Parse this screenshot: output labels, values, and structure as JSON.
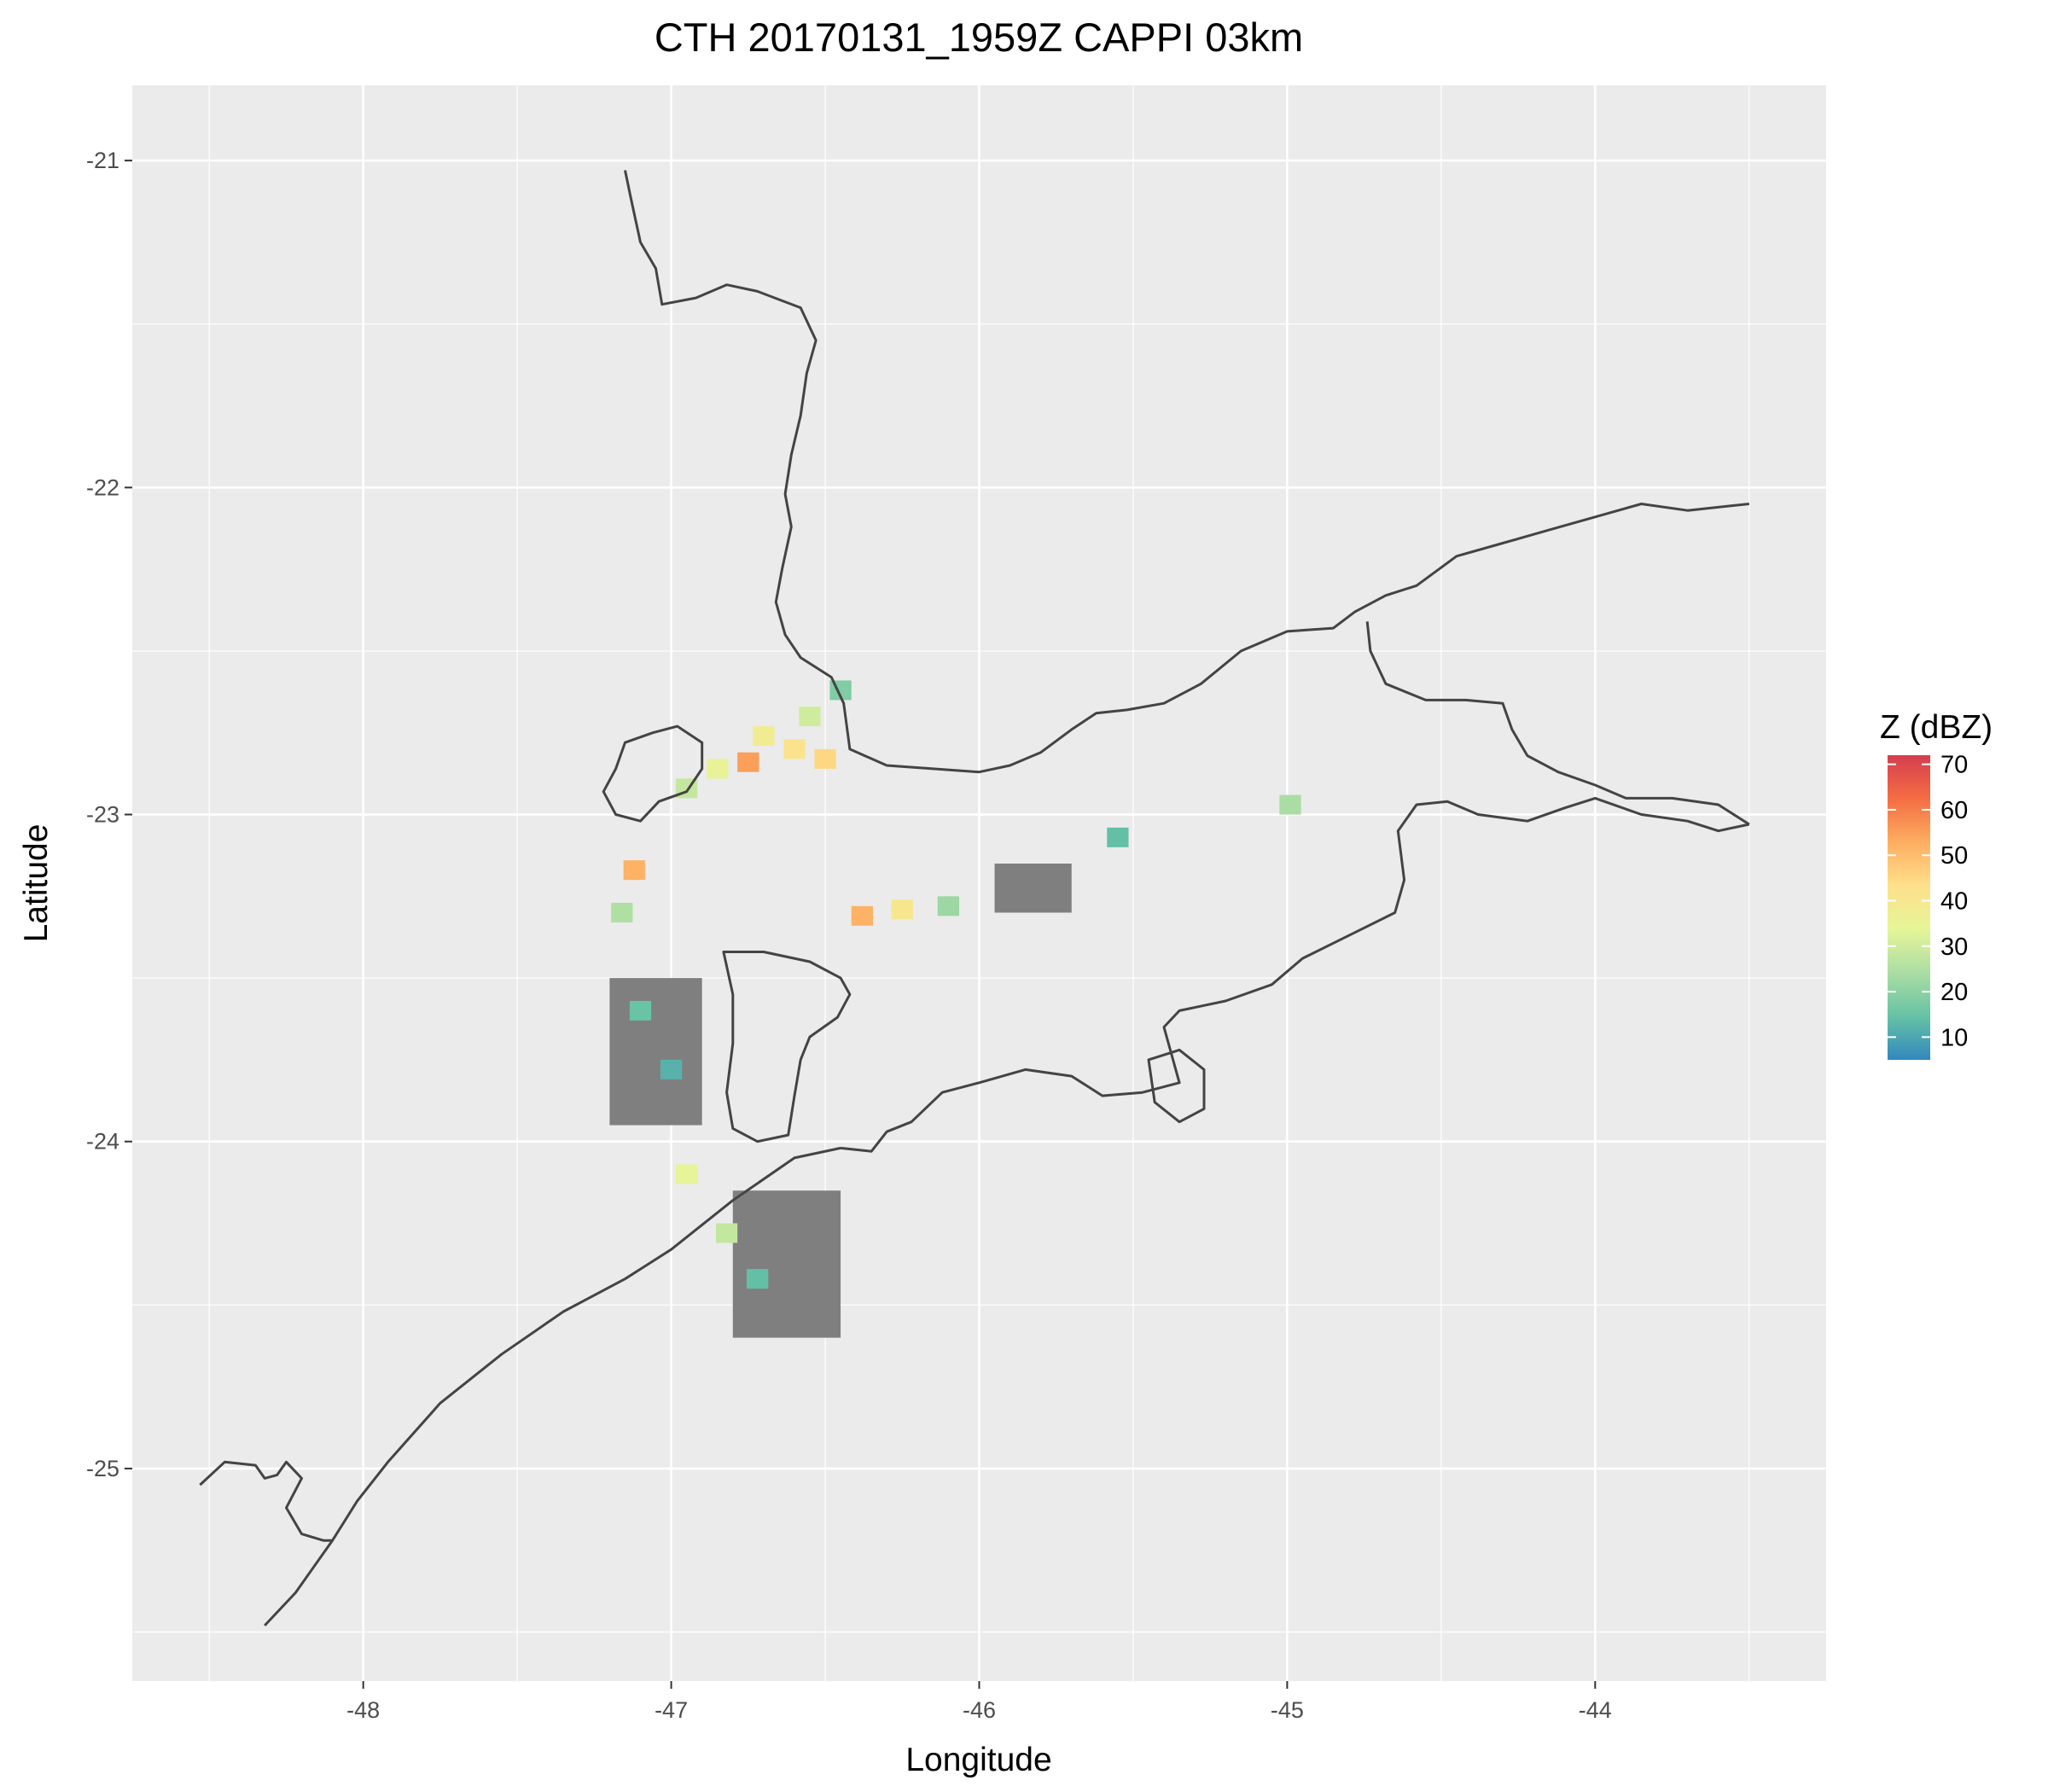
{
  "title": "CTH 20170131_1959Z  CAPPI 03km",
  "x_axis": {
    "label": "Longitude",
    "ticks": [
      -48,
      -47,
      -46,
      -45,
      -44
    ],
    "tick_labels": [
      "-48",
      "-47",
      "-46",
      "-45",
      "-44"
    ],
    "minor_ticks": [
      -48.5,
      -47.5,
      -46.5,
      -45.5,
      -44.5,
      -43.5
    ],
    "range": [
      -48.75,
      -43.25
    ]
  },
  "y_axis": {
    "label": "Latitude",
    "ticks": [
      -21,
      -22,
      -23,
      -24,
      -25
    ],
    "tick_labels": [
      "-21",
      "-22",
      "-23",
      "-24",
      "-25"
    ],
    "minor_ticks": [
      -21.5,
      -22.5,
      -23.5,
      -24.5,
      -25.5
    ],
    "range": [
      -25.65,
      -20.77
    ]
  },
  "panel": {
    "background": "#ebebeb",
    "grid_color": "#ffffff"
  },
  "legend": {
    "title": "Z (dBZ)",
    "ticks": [
      10,
      20,
      30,
      40,
      50,
      60,
      70
    ],
    "tick_labels": [
      "10",
      "20",
      "30",
      "40",
      "50",
      "60",
      "70"
    ],
    "range": [
      5,
      72
    ],
    "colors": [
      "#3288bd",
      "#66c2a5",
      "#abdda4",
      "#e6f598",
      "#fee08b",
      "#fdae61",
      "#f46d43",
      "#d53e4f"
    ]
  },
  "no_data_color": "#7f7f7f",
  "boundary_color": "#444444",
  "chart_data": {
    "type": "heatmap",
    "title": "CTH 20170131_1959Z  CAPPI 03km",
    "xlabel": "Longitude",
    "ylabel": "Latitude",
    "xlim": [
      -48.75,
      -43.25
    ],
    "ylim": [
      -25.65,
      -20.77
    ],
    "grid": true,
    "legend_placement": "right",
    "colorbar": {
      "title": "Z (dBZ)",
      "range": [
        5,
        72
      ],
      "ticks": [
        10,
        20,
        30,
        40,
        50,
        60,
        70
      ]
    },
    "cells": [
      {
        "lon": -46.95,
        "lat": -22.92,
        "z": 28
      },
      {
        "lon": -46.85,
        "lat": -22.86,
        "z": 35
      },
      {
        "lon": -46.75,
        "lat": -22.84,
        "z": 55
      },
      {
        "lon": -46.7,
        "lat": -22.76,
        "z": 38
      },
      {
        "lon": -46.6,
        "lat": -22.8,
        "z": 42
      },
      {
        "lon": -46.5,
        "lat": -22.83,
        "z": 45
      },
      {
        "lon": -46.55,
        "lat": -22.7,
        "z": 30
      },
      {
        "lon": -46.45,
        "lat": -22.62,
        "z": 18
      },
      {
        "lon": -47.12,
        "lat": -23.17,
        "z": 52
      },
      {
        "lon": -47.16,
        "lat": -23.3,
        "z": 25
      },
      {
        "lon": -47.1,
        "lat": -23.6,
        "z": 15
      },
      {
        "lon": -47.0,
        "lat": -23.78,
        "z": 12
      },
      {
        "lon": -46.95,
        "lat": -24.1,
        "z": 34
      },
      {
        "lon": -46.82,
        "lat": -24.28,
        "z": 28
      },
      {
        "lon": -46.72,
        "lat": -24.42,
        "z": 14
      },
      {
        "lon": -46.38,
        "lat": -23.31,
        "z": 52
      },
      {
        "lon": -46.25,
        "lat": -23.29,
        "z": 40
      },
      {
        "lon": -46.1,
        "lat": -23.28,
        "z": 22
      },
      {
        "lon": -44.99,
        "lat": -22.97,
        "z": 24
      },
      {
        "lon": -45.55,
        "lat": -23.07,
        "z": 14
      }
    ],
    "no_data_regions": [
      "-47.2,-23.5 to -46.9,-23.95",
      "-46.8,-24.15 to -46.45,-24.6",
      "-45.95,-23.15 to -45.7,-23.3"
    ]
  },
  "map_shapes": {
    "state_boundary": [
      [
        -47.15,
        -21.03
      ],
      [
        -47.13,
        -21.12
      ],
      [
        -47.1,
        -21.25
      ],
      [
        -47.05,
        -21.33
      ],
      [
        -47.03,
        -21.44
      ],
      [
        -46.92,
        -21.42
      ],
      [
        -46.82,
        -21.38
      ],
      [
        -46.72,
        -21.4
      ],
      [
        -46.58,
        -21.45
      ],
      [
        -46.53,
        -21.55
      ],
      [
        -46.56,
        -21.65
      ],
      [
        -46.58,
        -21.78
      ],
      [
        -46.61,
        -21.9
      ],
      [
        -46.63,
        -22.02
      ],
      [
        -46.61,
        -22.12
      ],
      [
        -46.64,
        -22.25
      ],
      [
        -46.66,
        -22.35
      ],
      [
        -46.63,
        -22.45
      ],
      [
        -46.58,
        -22.52
      ],
      [
        -46.48,
        -22.58
      ],
      [
        -46.44,
        -22.66
      ],
      [
        -46.42,
        -22.8
      ],
      [
        -46.3,
        -22.85
      ],
      [
        -46.15,
        -22.86
      ],
      [
        -46.0,
        -22.87
      ],
      [
        -45.9,
        -22.85
      ],
      [
        -45.8,
        -22.81
      ],
      [
        -45.7,
        -22.74
      ],
      [
        -45.62,
        -22.69
      ],
      [
        -45.52,
        -22.68
      ],
      [
        -45.4,
        -22.66
      ],
      [
        -45.28,
        -22.6
      ],
      [
        -45.15,
        -22.5
      ],
      [
        -45.0,
        -22.44
      ],
      [
        -44.85,
        -22.43
      ],
      [
        -44.78,
        -22.38
      ],
      [
        -44.68,
        -22.33
      ],
      [
        -44.58,
        -22.3
      ],
      [
        -44.45,
        -22.21
      ],
      [
        -44.3,
        -22.17
      ],
      [
        -44.15,
        -22.13
      ],
      [
        -44.0,
        -22.09
      ],
      [
        -43.85,
        -22.05
      ],
      [
        -43.7,
        -22.07
      ],
      [
        -43.5,
        -22.05
      ]
    ],
    "rj_border": [
      [
        -44.74,
        -22.41
      ],
      [
        -44.73,
        -22.5
      ],
      [
        -44.68,
        -22.6
      ],
      [
        -44.55,
        -22.65
      ],
      [
        -44.42,
        -22.65
      ],
      [
        -44.3,
        -22.66
      ],
      [
        -44.27,
        -22.74
      ],
      [
        -44.22,
        -22.82
      ],
      [
        -44.12,
        -22.87
      ],
      [
        -44.0,
        -22.91
      ],
      [
        -43.9,
        -22.95
      ],
      [
        -43.75,
        -22.95
      ],
      [
        -43.6,
        -22.97
      ],
      [
        -43.5,
        -23.03
      ]
    ],
    "coast_sp": [
      [
        -46.45,
        -24.02
      ],
      [
        -46.35,
        -24.03
      ],
      [
        -46.3,
        -23.97
      ],
      [
        -46.22,
        -23.94
      ],
      [
        -46.12,
        -23.85
      ],
      [
        -46.0,
        -23.82
      ],
      [
        -45.85,
        -23.78
      ],
      [
        -45.7,
        -23.8
      ],
      [
        -45.6,
        -23.86
      ],
      [
        -45.47,
        -23.85
      ],
      [
        -45.35,
        -23.82
      ],
      [
        -45.4,
        -23.65
      ],
      [
        -45.35,
        -23.6
      ],
      [
        -45.2,
        -23.57
      ],
      [
        -45.05,
        -23.52
      ],
      [
        -44.95,
        -23.44
      ],
      [
        -44.8,
        -23.37
      ],
      [
        -44.65,
        -23.3
      ],
      [
        -44.62,
        -23.2
      ],
      [
        -44.64,
        -23.05
      ],
      [
        -44.58,
        -22.97
      ],
      [
        -44.48,
        -22.96
      ],
      [
        -44.38,
        -23.0
      ],
      [
        -44.22,
        -23.02
      ],
      [
        -44.1,
        -22.98
      ],
      [
        -44.0,
        -22.95
      ],
      [
        -43.85,
        -23.0
      ],
      [
        -43.7,
        -23.02
      ],
      [
        -43.6,
        -23.05
      ],
      [
        -43.5,
        -23.03
      ]
    ],
    "island": [
      [
        -45.45,
        -23.75
      ],
      [
        -45.35,
        -23.72
      ],
      [
        -45.27,
        -23.78
      ],
      [
        -45.27,
        -23.9
      ],
      [
        -45.35,
        -23.94
      ],
      [
        -45.43,
        -23.88
      ]
    ],
    "coast_sw": [
      [
        -46.45,
        -24.02
      ],
      [
        -46.6,
        -24.05
      ],
      [
        -46.8,
        -24.18
      ],
      [
        -47.0,
        -24.33
      ],
      [
        -47.15,
        -24.42
      ],
      [
        -47.35,
        -24.52
      ],
      [
        -47.55,
        -24.65
      ],
      [
        -47.75,
        -24.8
      ],
      [
        -47.92,
        -24.98
      ],
      [
        -48.02,
        -25.1
      ],
      [
        -48.1,
        -25.22
      ],
      [
        -48.22,
        -25.38
      ],
      [
        -48.32,
        -25.48
      ]
    ],
    "pr_border": [
      [
        -48.53,
        -25.05
      ],
      [
        -48.45,
        -24.98
      ],
      [
        -48.35,
        -24.99
      ],
      [
        -48.32,
        -25.03
      ],
      [
        -48.28,
        -25.02
      ],
      [
        -48.25,
        -24.98
      ],
      [
        -48.2,
        -25.03
      ],
      [
        -48.25,
        -25.12
      ],
      [
        -48.2,
        -25.2
      ],
      [
        -48.13,
        -25.22
      ],
      [
        -48.1,
        -25.22
      ]
    ],
    "basin_outline": [
      [
        -46.9,
        -22.78
      ],
      [
        -46.98,
        -22.73
      ],
      [
        -47.06,
        -22.75
      ],
      [
        -47.15,
        -22.78
      ],
      [
        -47.18,
        -22.86
      ],
      [
        -47.22,
        -22.93
      ],
      [
        -47.18,
        -23.0
      ],
      [
        -47.1,
        -23.02
      ],
      [
        -47.04,
        -22.96
      ],
      [
        -46.95,
        -22.93
      ],
      [
        -46.9,
        -22.86
      ]
    ],
    "valley_outline": [
      [
        -46.83,
        -23.42
      ],
      [
        -46.7,
        -23.42
      ],
      [
        -46.55,
        -23.45
      ],
      [
        -46.45,
        -23.5
      ],
      [
        -46.42,
        -23.55
      ],
      [
        -46.46,
        -23.62
      ],
      [
        -46.55,
        -23.68
      ],
      [
        -46.58,
        -23.75
      ],
      [
        -46.6,
        -23.86
      ],
      [
        -46.62,
        -23.98
      ],
      [
        -46.72,
        -24.0
      ],
      [
        -46.8,
        -23.96
      ],
      [
        -46.82,
        -23.85
      ],
      [
        -46.8,
        -23.7
      ],
      [
        -46.8,
        -23.55
      ],
      [
        -46.83,
        -23.42
      ]
    ]
  }
}
